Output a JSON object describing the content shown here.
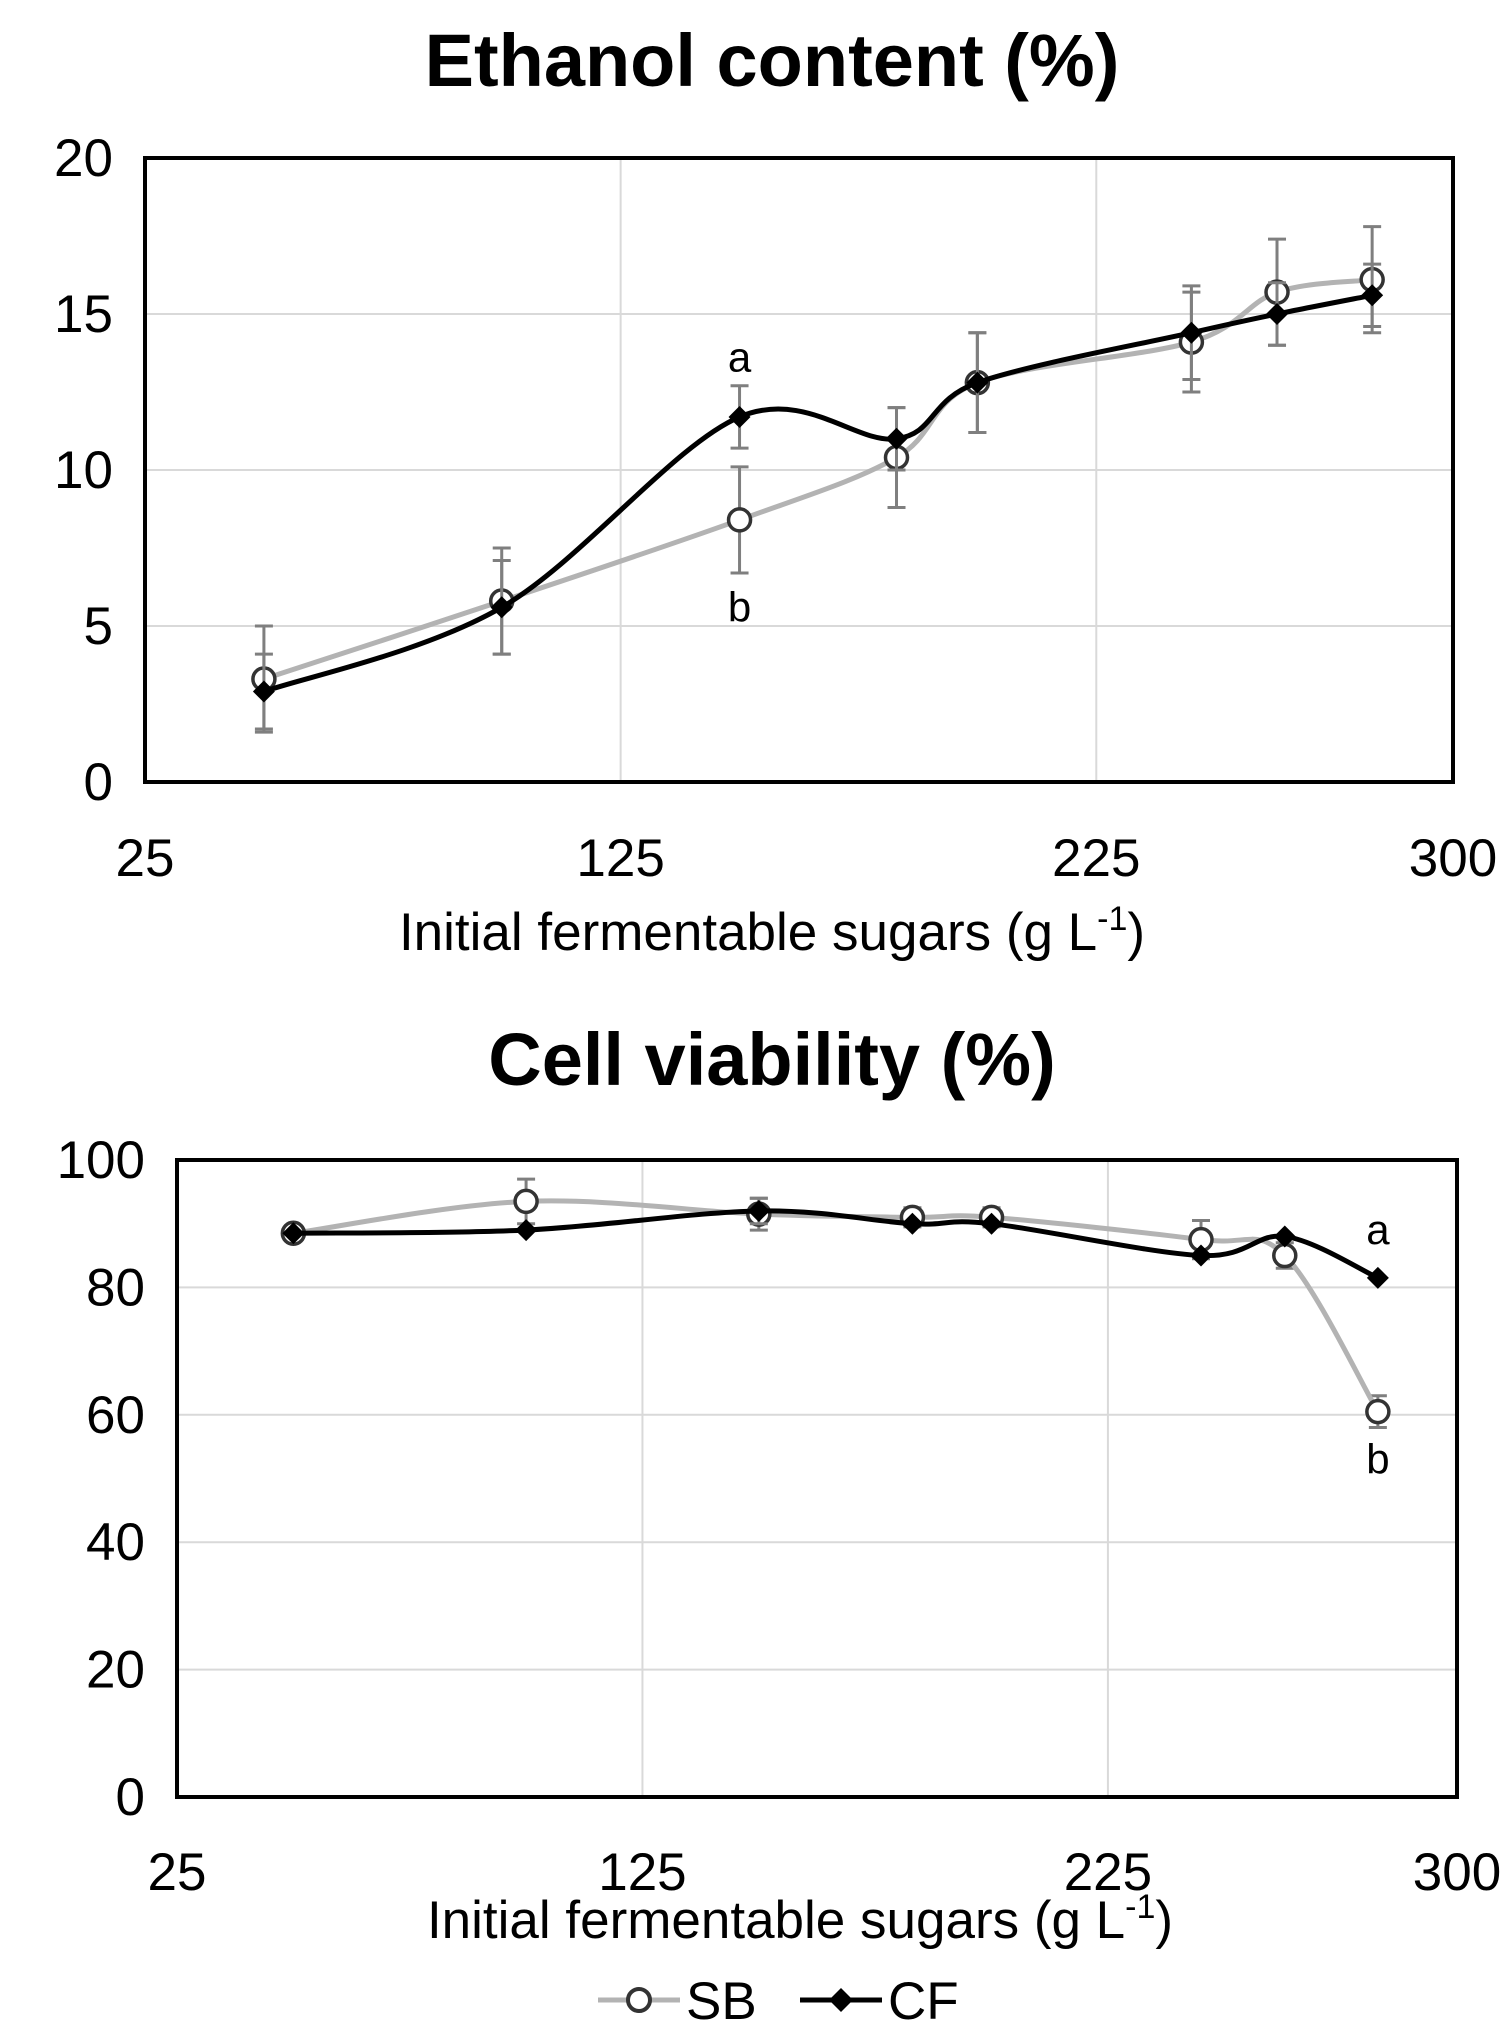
{
  "chart_data": [
    {
      "type": "line",
      "title": "Ethanol content (%)",
      "xlabel": "Initial fermentable sugars (g L",
      "xlabel_sup": "-1",
      "xlabel_close": ")",
      "xlim": [
        25,
        300
      ],
      "ylim": [
        0,
        20
      ],
      "xticks": [
        "25",
        "125",
        "225",
        "300"
      ],
      "yticks": [
        "0",
        "5",
        "10",
        "15",
        "20"
      ],
      "grid": true,
      "series": [
        {
          "name": "SB",
          "color": "#b3b3b3",
          "marker": "circle",
          "x": [
            50,
            100,
            150,
            183,
            200,
            245,
            263,
            283
          ],
          "y": [
            3.3,
            5.8,
            8.4,
            10.4,
            12.8,
            14.1,
            15.7,
            16.1
          ],
          "err": [
            1.7,
            1.7,
            1.7,
            1.6,
            1.6,
            1.6,
            1.7,
            1.7
          ]
        },
        {
          "name": "CF",
          "color": "#000000",
          "marker": "diamond",
          "x": [
            50,
            100,
            150,
            183,
            200,
            245,
            263,
            283
          ],
          "y": [
            2.9,
            5.6,
            11.7,
            11.0,
            12.8,
            14.4,
            15.0,
            15.6
          ],
          "err": [
            1.2,
            1.5,
            1.0,
            1.0,
            1.6,
            1.5,
            1.0,
            1.0
          ]
        }
      ],
      "annotations": [
        {
          "text": "a",
          "x": 150,
          "y": 13.6
        },
        {
          "text": "b",
          "x": 150,
          "y": 5.6
        }
      ]
    },
    {
      "type": "line",
      "title": "Cell viability (%)",
      "xlabel": "Initial fermentable sugars (g L",
      "xlabel_sup": "-1",
      "xlabel_close": ")",
      "xlim": [
        25,
        300
      ],
      "ylim": [
        0,
        100
      ],
      "xticks": [
        "25",
        "125",
        "225",
        "300"
      ],
      "yticks": [
        "0",
        "20",
        "40",
        "60",
        "80",
        "100"
      ],
      "grid": true,
      "series": [
        {
          "name": "SB",
          "color": "#b3b3b3",
          "marker": "circle",
          "x": [
            50,
            100,
            150,
            183,
            200,
            245,
            263,
            283
          ],
          "y": [
            88.5,
            93.5,
            91.5,
            91.0,
            91.0,
            87.5,
            85.0,
            60.5
          ],
          "err": [
            0,
            3.5,
            2.5,
            1.5,
            1.5,
            3.0,
            2.0,
            2.5
          ]
        },
        {
          "name": "CF",
          "color": "#000000",
          "marker": "diamond",
          "x": [
            50,
            100,
            150,
            183,
            200,
            245,
            263,
            283
          ],
          "y": [
            88.5,
            89.0,
            92.0,
            90.0,
            90.0,
            85.0,
            88.0,
            81.5
          ],
          "err": [
            0,
            0,
            2.0,
            0,
            0,
            0,
            0,
            0
          ]
        }
      ],
      "annotations": [
        {
          "text": "a",
          "x": 283,
          "y": 89.0
        },
        {
          "text": "b",
          "x": 283,
          "y": 53.0
        }
      ]
    }
  ],
  "legend": [
    {
      "label": "SB",
      "color": "#b3b3b3",
      "marker": "circle"
    },
    {
      "label": "CF",
      "color": "#000000",
      "marker": "diamond"
    }
  ]
}
